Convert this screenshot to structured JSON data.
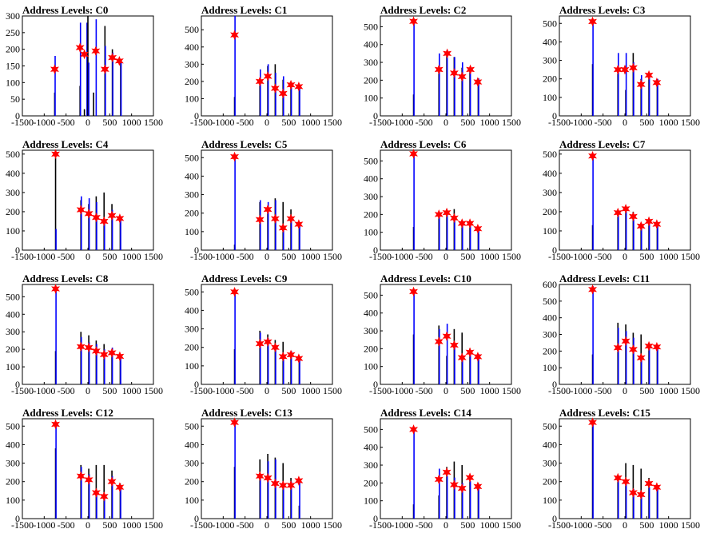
{
  "chart_data": [
    {
      "type": "bar",
      "title": "Address Levels: C0",
      "xlim": [
        -1500,
        1500
      ],
      "ylim": [
        0,
        300
      ],
      "yticks": [
        0,
        50,
        100,
        150,
        200,
        250,
        300
      ],
      "xticks": [
        -1500,
        -1000,
        -500,
        0,
        500,
        1000,
        1500
      ],
      "peaks": {
        "x": [
          -750,
          -180,
          -80,
          20,
          190,
          390,
          570,
          760
        ],
        "values": [
          140,
          200,
          185,
          195,
          135,
          170,
          160,
          null
        ]
      },
      "bars": {
        "x": [
          -760,
          -750,
          -180,
          -170,
          -80,
          -20,
          0,
          20,
          130,
          190,
          390,
          400,
          560,
          570,
          750,
          760
        ],
        "values": [
          70,
          180,
          90,
          280,
          20,
          280,
          300,
          160,
          70,
          290,
          270,
          210,
          200,
          190,
          160,
          170
        ]
      },
      "star_points": {
        "x": [
          -760,
          -180,
          -80,
          180,
          390,
          560,
          720
        ],
        "values": [
          140,
          205,
          185,
          195,
          140,
          175,
          165
        ]
      }
    },
    {
      "type": "bar",
      "title": "Address Levels: C1",
      "xlim": [
        -1500,
        1500
      ],
      "ylim": [
        0,
        580
      ],
      "yticks": [
        0,
        100,
        200,
        300,
        400,
        500
      ],
      "xticks": [
        -1500,
        -1000,
        -500,
        0,
        500,
        1000,
        1500
      ],
      "bars": {
        "x": [
          -740,
          -730,
          -160,
          -150,
          20,
          30,
          190,
          200,
          370,
          380,
          550,
          560,
          740,
          750
        ],
        "values": [
          110,
          580,
          210,
          270,
          290,
          300,
          300,
          250,
          210,
          230,
          200,
          190,
          180,
          170
        ]
      },
      "star_points": {
        "x": [
          -740,
          -160,
          20,
          190,
          370,
          550,
          730
        ],
        "values": [
          470,
          200,
          230,
          160,
          130,
          180,
          170
        ]
      }
    },
    {
      "type": "bar",
      "title": "Address Levels: C2",
      "xlim": [
        -1500,
        1500
      ],
      "ylim": [
        0,
        560
      ],
      "yticks": [
        0,
        100,
        200,
        300,
        400,
        500
      ],
      "xticks": [
        -1500,
        -1000,
        -500,
        0,
        500,
        1000,
        1500
      ],
      "bars": {
        "x": [
          -740,
          -730,
          -160,
          -150,
          20,
          30,
          190,
          200,
          370,
          380,
          550,
          560,
          740,
          750
        ],
        "values": [
          120,
          540,
          280,
          350,
          340,
          370,
          330,
          330,
          270,
          300,
          250,
          270,
          200,
          210
        ]
      },
      "star_points": {
        "x": [
          -740,
          -160,
          30,
          190,
          370,
          560,
          730
        ],
        "values": [
          530,
          260,
          350,
          240,
          220,
          260,
          190
        ]
      }
    },
    {
      "type": "bar",
      "title": "Address Levels: C3",
      "xlim": [
        -1500,
        1500
      ],
      "ylim": [
        0,
        540
      ],
      "yticks": [
        0,
        100,
        200,
        300,
        400,
        500
      ],
      "xticks": [
        -1500,
        -1000,
        -500,
        0,
        500,
        1000,
        1500
      ],
      "bars": {
        "x": [
          -740,
          -730,
          -160,
          -150,
          20,
          30,
          190,
          200,
          370,
          380,
          550,
          560,
          740,
          750
        ],
        "values": [
          280,
          520,
          250,
          340,
          140,
          340,
          340,
          290,
          200,
          220,
          230,
          210,
          190,
          200
        ]
      },
      "star_points": {
        "x": [
          -740,
          -160,
          0,
          190,
          370,
          550,
          730
        ],
        "values": [
          510,
          250,
          250,
          260,
          170,
          220,
          180
        ]
      }
    },
    {
      "type": "bar",
      "title": "Address Levels: C4",
      "xlim": [
        -1500,
        1500
      ],
      "ylim": [
        0,
        520
      ],
      "yticks": [
        0,
        100,
        200,
        300,
        400,
        500
      ],
      "xticks": [
        -1500,
        -1000,
        -500,
        0,
        500,
        1000,
        1500
      ],
      "bars": {
        "x": [
          -740,
          -730,
          -160,
          -150,
          20,
          30,
          190,
          200,
          370,
          380,
          550,
          560,
          740,
          750
        ],
        "values": [
          480,
          110,
          260,
          280,
          240,
          270,
          280,
          250,
          300,
          150,
          240,
          210,
          160,
          170
        ]
      },
      "star_points": {
        "x": [
          -740,
          -160,
          20,
          190,
          370,
          550,
          730
        ],
        "values": [
          500,
          210,
          190,
          170,
          150,
          180,
          165
        ]
      }
    },
    {
      "type": "bar",
      "title": "Address Levels: C5",
      "xlim": [
        -1500,
        1500
      ],
      "ylim": [
        0,
        540
      ],
      "yticks": [
        0,
        100,
        200,
        300,
        400,
        500
      ],
      "xticks": [
        -1500,
        -1000,
        -500,
        0,
        500,
        1000,
        1500
      ],
      "bars": {
        "x": [
          -740,
          -730,
          -160,
          -150,
          20,
          30,
          190,
          200,
          370,
          380,
          550,
          560,
          740,
          750
        ],
        "values": [
          30,
          500,
          260,
          270,
          210,
          260,
          280,
          270,
          260,
          130,
          220,
          170,
          130,
          140
        ]
      },
      "star_points": {
        "x": [
          -740,
          -160,
          20,
          190,
          370,
          550,
          730
        ],
        "values": [
          505,
          165,
          220,
          170,
          120,
          170,
          140
        ]
      }
    },
    {
      "type": "bar",
      "title": "Address Levels: C6",
      "xlim": [
        -1500,
        1500
      ],
      "ylim": [
        0,
        560
      ],
      "yticks": [
        0,
        100,
        200,
        300,
        400,
        500
      ],
      "xticks": [
        -1500,
        -1000,
        -500,
        0,
        500,
        1000,
        1500
      ],
      "bars": {
        "x": [
          -740,
          -730,
          -160,
          -150,
          20,
          30,
          190,
          200,
          370,
          380,
          550,
          560,
          740,
          750
        ],
        "values": [
          130,
          540,
          210,
          210,
          230,
          220,
          230,
          180,
          170,
          160,
          160,
          150,
          120,
          130
        ]
      },
      "star_points": {
        "x": [
          -740,
          -160,
          20,
          190,
          370,
          550,
          730
        ],
        "values": [
          540,
          200,
          210,
          180,
          150,
          150,
          120
        ]
      }
    },
    {
      "type": "bar",
      "title": "Address Levels: C7",
      "xlim": [
        -1500,
        1500
      ],
      "ylim": [
        0,
        520
      ],
      "yticks": [
        0,
        100,
        200,
        300,
        400,
        500
      ],
      "xticks": [
        -1500,
        -1000,
        -500,
        0,
        500,
        1000,
        1500
      ],
      "bars": {
        "x": [
          -740,
          -730,
          -160,
          -150,
          20,
          30,
          190,
          200,
          370,
          380,
          550,
          560,
          740,
          750
        ],
        "values": [
          130,
          500,
          210,
          200,
          230,
          220,
          200,
          160,
          140,
          120,
          150,
          140,
          130,
          140
        ]
      },
      "star_points": {
        "x": [
          -740,
          -160,
          20,
          190,
          370,
          550,
          730
        ],
        "values": [
          490,
          195,
          215,
          175,
          125,
          150,
          135
        ]
      }
    },
    {
      "type": "bar",
      "title": "Address Levels: C8",
      "xlim": [
        -1500,
        1500
      ],
      "ylim": [
        0,
        570
      ],
      "yticks": [
        0,
        100,
        200,
        300,
        400,
        500
      ],
      "xticks": [
        -1500,
        -1000,
        -500,
        0,
        500,
        1000,
        1500
      ],
      "bars": {
        "x": [
          -740,
          -730,
          -160,
          -150,
          20,
          30,
          190,
          200,
          370,
          380,
          550,
          560,
          740,
          750
        ],
        "values": [
          190,
          550,
          300,
          270,
          280,
          240,
          250,
          230,
          230,
          200,
          190,
          210,
          170,
          160
        ]
      },
      "star_points": {
        "x": [
          -740,
          -160,
          20,
          190,
          370,
          550,
          730
        ],
        "values": [
          545,
          215,
          210,
          190,
          170,
          180,
          160
        ]
      }
    },
    {
      "type": "bar",
      "title": "Address Levels: C9",
      "xlim": [
        -1500,
        1500
      ],
      "ylim": [
        0,
        540
      ],
      "yticks": [
        0,
        100,
        200,
        300,
        400,
        500
      ],
      "xticks": [
        -1500,
        -1000,
        -500,
        0,
        500,
        1000,
        1500
      ],
      "bars": {
        "x": [
          -740,
          -730,
          -160,
          -150,
          20,
          30,
          190,
          200,
          370,
          380,
          550,
          560,
          740,
          750
        ],
        "values": [
          190,
          510,
          290,
          280,
          270,
          250,
          240,
          210,
          230,
          150,
          170,
          180,
          140,
          150
        ]
      },
      "star_points": {
        "x": [
          -740,
          -160,
          20,
          190,
          370,
          550,
          730
        ],
        "values": [
          500,
          220,
          230,
          200,
          150,
          160,
          140
        ]
      }
    },
    {
      "type": "bar",
      "title": "Address Levels: C10",
      "xlim": [
        -1500,
        1500
      ],
      "ylim": [
        0,
        560
      ],
      "yticks": [
        0,
        100,
        200,
        300,
        400,
        500
      ],
      "xticks": [
        -1500,
        -1000,
        -500,
        0,
        500,
        1000,
        1500
      ],
      "bars": {
        "x": [
          -740,
          -730,
          -160,
          -150,
          20,
          30,
          190,
          200,
          370,
          380,
          550,
          560,
          740,
          750
        ],
        "values": [
          280,
          530,
          330,
          310,
          160,
          340,
          310,
          230,
          290,
          150,
          200,
          190,
          160,
          170
        ]
      },
      "star_points": {
        "x": [
          -740,
          -160,
          20,
          190,
          370,
          550,
          730
        ],
        "values": [
          520,
          240,
          270,
          220,
          150,
          180,
          155
        ]
      }
    },
    {
      "type": "bar",
      "title": "Address Levels: C11",
      "xlim": [
        -1500,
        1500
      ],
      "ylim": [
        0,
        600
      ],
      "yticks": [
        0,
        100,
        200,
        300,
        400,
        500,
        600
      ],
      "xticks": [
        -1500,
        -1000,
        -500,
        0,
        500,
        1000,
        1500
      ],
      "bars": {
        "x": [
          -740,
          -730,
          -160,
          -150,
          20,
          30,
          190,
          200,
          370,
          380,
          550,
          560,
          740,
          750
        ],
        "values": [
          180,
          590,
          370,
          340,
          360,
          320,
          310,
          280,
          300,
          160,
          250,
          230,
          220,
          230
        ]
      },
      "star_points": {
        "x": [
          -740,
          -160,
          20,
          190,
          370,
          550,
          730
        ],
        "values": [
          570,
          220,
          260,
          210,
          160,
          230,
          225
        ]
      }
    },
    {
      "type": "bar",
      "title": "Address Levels: C12",
      "xlim": [
        -1500,
        1500
      ],
      "ylim": [
        0,
        540
      ],
      "yticks": [
        0,
        100,
        200,
        300,
        400,
        500
      ],
      "xticks": [
        -1500,
        -1000,
        -500,
        0,
        500,
        1000,
        1500
      ],
      "bars": {
        "x": [
          -740,
          -730,
          -160,
          -150,
          20,
          30,
          190,
          200,
          370,
          380,
          550,
          560,
          740,
          750
        ],
        "values": [
          380,
          510,
          290,
          280,
          270,
          240,
          290,
          140,
          290,
          110,
          260,
          230,
          190,
          180
        ]
      },
      "star_points": {
        "x": [
          -740,
          -160,
          20,
          190,
          370,
          550,
          730
        ],
        "values": [
          510,
          230,
          210,
          140,
          120,
          200,
          170
        ]
      }
    },
    {
      "type": "bar",
      "title": "Address Levels: C13",
      "xlim": [
        -1500,
        1500
      ],
      "ylim": [
        0,
        540
      ],
      "yticks": [
        0,
        100,
        200,
        300,
        400,
        500
      ],
      "xticks": [
        -1500,
        -1000,
        -500,
        0,
        500,
        1000,
        1500
      ],
      "bars": {
        "x": [
          -740,
          -730,
          -160,
          -150,
          20,
          30,
          190,
          200,
          370,
          380,
          550,
          560,
          740,
          750
        ],
        "values": [
          280,
          520,
          320,
          240,
          350,
          310,
          330,
          320,
          300,
          190,
          220,
          200,
          70,
          210
        ]
      },
      "star_points": {
        "x": [
          -740,
          -160,
          20,
          190,
          370,
          550,
          730
        ],
        "values": [
          520,
          230,
          220,
          190,
          180,
          180,
          205
        ]
      }
    },
    {
      "type": "bar",
      "title": "Address Levels: C14",
      "xlim": [
        -1500,
        1500
      ],
      "ylim": [
        0,
        560
      ],
      "yticks": [
        0,
        100,
        200,
        300,
        400,
        500
      ],
      "xticks": [
        -1500,
        -1000,
        -500,
        0,
        500,
        1000,
        1500
      ],
      "bars": {
        "x": [
          -740,
          -730,
          -160,
          -150,
          20,
          30,
          190,
          200,
          370,
          380,
          550,
          560,
          740,
          750
        ],
        "values": [
          80,
          510,
          130,
          280,
          290,
          240,
          320,
          230,
          300,
          200,
          230,
          210,
          200,
          180
        ]
      },
      "star_points": {
        "x": [
          -740,
          -160,
          20,
          190,
          370,
          550,
          730
        ],
        "values": [
          500,
          220,
          260,
          190,
          170,
          230,
          180
        ]
      }
    },
    {
      "type": "bar",
      "title": "Address Levels: C15",
      "xlim": [
        -1500,
        1500
      ],
      "ylim": [
        0,
        540
      ],
      "yticks": [
        0,
        100,
        200,
        300,
        400,
        500
      ],
      "xticks": [
        -1500,
        -1000,
        -500,
        0,
        500,
        1000,
        1500
      ],
      "bars": {
        "x": [
          -740,
          -730,
          -160,
          -150,
          20,
          30,
          190,
          200,
          370,
          380,
          550,
          560,
          740,
          750
        ],
        "values": [
          500,
          530,
          220,
          210,
          300,
          200,
          290,
          160,
          270,
          140,
          220,
          170,
          150,
          160
        ]
      },
      "star_points": {
        "x": [
          -740,
          -160,
          20,
          190,
          370,
          550,
          730
        ],
        "values": [
          520,
          220,
          200,
          140,
          130,
          190,
          170
        ]
      }
    }
  ],
  "colors": {
    "bar_primary": "#0000ff",
    "bar_secondary": "#000000",
    "marker": "#ff0000",
    "axis": "#000000"
  }
}
